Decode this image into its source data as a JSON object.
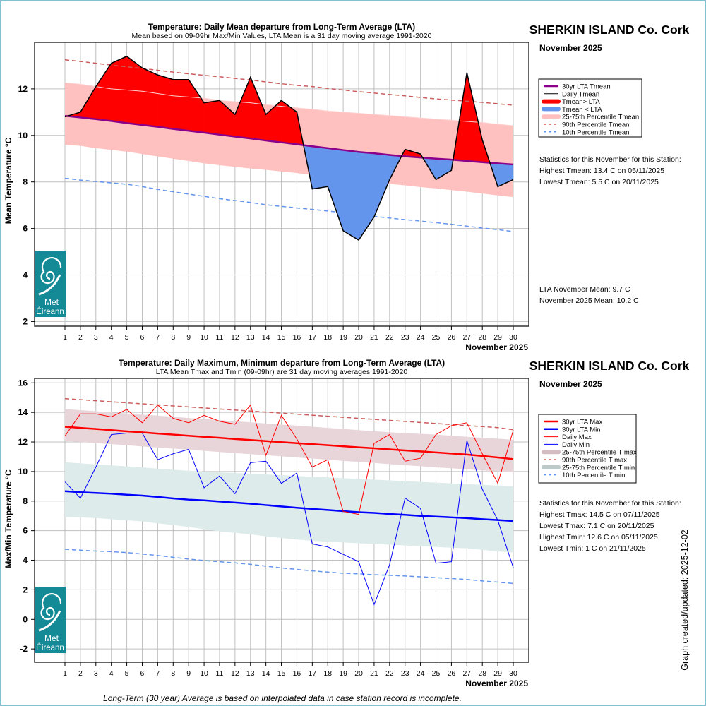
{
  "colors": {
    "above_fill": "#ff0000",
    "below_fill": "#6495ed",
    "lta_mean": "#8b008b",
    "band_mean": "#ffc0c0",
    "p90": "#cd5c5c",
    "p10": "#6495ed",
    "lta_max": "#ff0000",
    "lta_min": "#0000ff",
    "band_tmax": "#e8d5da",
    "band_tmin": "#deebeb",
    "logo_bg": "#148a96",
    "frame": "#7fc4cc"
  },
  "logo": {
    "line1": "Met",
    "line2": "Éireann"
  },
  "footer": "Long-Term (30 year) Average is based on interpolated data in case station record is incomplete.",
  "stamp": "Graph created/updated:  2025-12-02",
  "chart_data": [
    {
      "type": "area",
      "title": "Temperature: Daily Mean departure from Long-Term Average (LTA)",
      "subtitle": "Mean based on 09-09hr Max/Min Values, LTA Mean is a 31 day moving average 1991-2020",
      "station": "SHERKIN ISLAND Co. Cork",
      "month_label": "November 2025",
      "xlabel": "November 2025",
      "ylabel": "Mean Temperature °C",
      "ylim": [
        1.8,
        14.0
      ],
      "yticks": [
        2,
        4,
        6,
        8,
        10,
        12
      ],
      "x": [
        1,
        2,
        3,
        4,
        5,
        6,
        7,
        8,
        9,
        10,
        11,
        12,
        13,
        14,
        15,
        16,
        17,
        18,
        19,
        20,
        21,
        22,
        23,
        24,
        25,
        26,
        27,
        28,
        29,
        30
      ],
      "grid": true,
      "legend_position": "right",
      "series": [
        {
          "name": "Daily Tmean",
          "values": [
            10.8,
            11.0,
            12.1,
            13.1,
            13.4,
            12.9,
            12.6,
            12.4,
            12.4,
            11.4,
            11.5,
            10.9,
            12.5,
            10.9,
            11.5,
            11.0,
            7.7,
            7.8,
            5.9,
            5.5,
            6.5,
            8.1,
            9.4,
            9.2,
            8.1,
            8.5,
            12.7,
            9.8,
            7.8,
            8.1
          ]
        },
        {
          "name": "30yr LTA Tmean",
          "values": [
            10.84,
            10.77,
            10.7,
            10.62,
            10.53,
            10.45,
            10.37,
            10.28,
            10.2,
            10.12,
            10.03,
            9.95,
            9.87,
            9.78,
            9.7,
            9.62,
            9.53,
            9.45,
            9.37,
            9.29,
            9.23,
            9.16,
            9.1,
            9.05,
            9.0,
            8.96,
            8.9,
            8.85,
            8.8,
            8.75
          ]
        },
        {
          "name": "25th Percentile Tmean",
          "values": [
            9.6,
            9.55,
            9.45,
            9.38,
            9.3,
            9.2,
            9.1,
            9.0,
            8.9,
            8.8,
            8.72,
            8.65,
            8.58,
            8.52,
            8.45,
            8.38,
            8.3,
            8.22,
            8.15,
            8.08,
            8.0,
            7.92,
            7.85,
            7.78,
            7.72,
            7.65,
            7.58,
            7.5,
            7.42,
            7.35
          ]
        },
        {
          "name": "75th Percentile Tmean",
          "values": [
            12.26,
            12.2,
            12.1,
            12.0,
            11.95,
            11.9,
            11.8,
            11.7,
            11.65,
            11.6,
            11.5,
            11.45,
            11.4,
            11.32,
            11.25,
            11.18,
            11.12,
            11.05,
            11.0,
            10.95,
            10.9,
            10.85,
            10.8,
            10.75,
            10.7,
            10.65,
            10.6,
            10.55,
            10.48,
            10.42
          ]
        },
        {
          "name": "90th Percentile Tmean",
          "values": [
            13.25,
            13.18,
            13.1,
            13.02,
            12.95,
            12.88,
            12.8,
            12.72,
            12.65,
            12.58,
            12.52,
            12.45,
            12.38,
            12.3,
            12.22,
            12.15,
            12.1,
            12.02,
            11.95,
            11.88,
            11.82,
            11.76,
            11.7,
            11.63,
            11.57,
            11.52,
            11.47,
            11.42,
            11.36,
            11.3
          ]
        },
        {
          "name": "10th Percentile Tmean",
          "values": [
            8.16,
            8.08,
            8.02,
            7.96,
            7.9,
            7.8,
            7.68,
            7.58,
            7.48,
            7.38,
            7.28,
            7.2,
            7.12,
            7.02,
            6.95,
            6.88,
            6.82,
            6.75,
            6.68,
            6.6,
            6.52,
            6.45,
            6.38,
            6.32,
            6.25,
            6.18,
            6.1,
            6.02,
            5.95,
            5.87
          ]
        }
      ],
      "legend": [
        {
          "label": "30yr LTA Tmean",
          "style": "line",
          "color": "#8b008b"
        },
        {
          "label": "Daily Tmean",
          "style": "thin",
          "color": "#000000"
        },
        {
          "label": "Tmean> LTA",
          "style": "thick",
          "color": "#ff0000"
        },
        {
          "label": "Tmean < LTA",
          "style": "thick",
          "color": "#6495ed"
        },
        {
          "label": "25-75th Percentile Tmean",
          "style": "thick",
          "color": "#ffc0c0"
        },
        {
          "label": "90th Percentile Tmean",
          "style": "dash",
          "color": "#cd5c5c"
        },
        {
          "label": "10th Percentile Tmean",
          "style": "dash",
          "color": "#6495ed"
        }
      ],
      "stats_heading": "Statistics for this November for this Station:",
      "stats": [
        "Highest Tmean: 13.4 C on 05/11/2025",
        "Lowest Tmean: 5.5 C on 20/11/2025"
      ],
      "means": [
        "LTA November Mean: 9.7 C",
        "November 2025 Mean: 10.2 C"
      ]
    },
    {
      "type": "line",
      "title": "Temperature: Daily Maximum, Minimum departure from Long-Term Average (LTA)",
      "subtitle": "LTA Mean Tmax and Tmin (09-09hr) are 31 day moving averages 1991-2020",
      "station": "SHERKIN ISLAND Co. Cork",
      "month_label": "November 2025",
      "xlabel": "November 2025",
      "ylabel": "Max/Min Temperature °C",
      "ylim": [
        -2.9,
        16.3
      ],
      "yticks": [
        -2,
        0,
        2,
        4,
        6,
        8,
        10,
        12,
        14,
        16
      ],
      "x": [
        1,
        2,
        3,
        4,
        5,
        6,
        7,
        8,
        9,
        10,
        11,
        12,
        13,
        14,
        15,
        16,
        17,
        18,
        19,
        20,
        21,
        22,
        23,
        24,
        25,
        26,
        27,
        28,
        29,
        30
      ],
      "grid": true,
      "legend_position": "right",
      "series": [
        {
          "name": "Daily Max",
          "values": [
            12.4,
            13.9,
            13.9,
            13.7,
            14.2,
            13.3,
            14.5,
            13.6,
            13.3,
            13.8,
            13.4,
            13.2,
            14.5,
            11.1,
            13.8,
            12.2,
            10.3,
            10.8,
            7.3,
            7.1,
            11.9,
            12.5,
            10.7,
            10.9,
            12.5,
            13.1,
            13.3,
            11.2,
            9.2,
            12.8
          ]
        },
        {
          "name": "Daily Min",
          "values": [
            9.3,
            8.2,
            10.3,
            12.5,
            12.6,
            12.6,
            10.8,
            11.2,
            11.5,
            8.9,
            9.7,
            8.5,
            10.6,
            10.7,
            9.2,
            9.9,
            5.1,
            4.9,
            4.4,
            3.9,
            1.0,
            3.7,
            8.2,
            7.5,
            3.8,
            3.9,
            12.1,
            8.8,
            6.7,
            3.5
          ]
        },
        {
          "name": "30yr LTA Max",
          "values": [
            13.03,
            12.95,
            12.88,
            12.8,
            12.72,
            12.65,
            12.57,
            12.5,
            12.42,
            12.35,
            12.28,
            12.2,
            12.13,
            12.06,
            11.99,
            11.92,
            11.85,
            11.78,
            11.71,
            11.64,
            11.57,
            11.5,
            11.43,
            11.36,
            11.29,
            11.22,
            11.15,
            11.05,
            10.95,
            10.84
          ]
        },
        {
          "name": "30yr LTA Min",
          "values": [
            8.67,
            8.6,
            8.55,
            8.5,
            8.43,
            8.37,
            8.28,
            8.18,
            8.1,
            8.05,
            7.97,
            7.9,
            7.82,
            7.73,
            7.64,
            7.55,
            7.47,
            7.4,
            7.32,
            7.25,
            7.2,
            7.13,
            7.07,
            7.0,
            6.95,
            6.9,
            6.85,
            6.78,
            6.72,
            6.65
          ]
        },
        {
          "name": "25th Percentile T max",
          "values": [
            12.09,
            12.0,
            11.92,
            11.85,
            11.78,
            11.7,
            11.62,
            11.55,
            11.48,
            11.4,
            11.32,
            11.25,
            11.18,
            11.1,
            11.03,
            10.95,
            10.88,
            10.8,
            10.72,
            10.65,
            10.58,
            10.5,
            10.43,
            10.36,
            10.28,
            10.22,
            10.15,
            10.08,
            10.01,
            9.94
          ]
        },
        {
          "name": "75th Percentile T max",
          "values": [
            14.22,
            14.15,
            14.08,
            14.0,
            13.93,
            13.85,
            13.78,
            13.7,
            13.62,
            13.55,
            13.48,
            13.4,
            13.33,
            13.25,
            13.18,
            13.1,
            13.03,
            12.95,
            12.88,
            12.8,
            12.73,
            12.65,
            12.6,
            12.55,
            12.5,
            12.42,
            12.35,
            12.28,
            12.22,
            12.15
          ]
        },
        {
          "name": "90th Percentile T max",
          "values": [
            14.93,
            14.86,
            14.79,
            14.72,
            14.65,
            14.58,
            14.51,
            14.44,
            14.37,
            14.3,
            14.23,
            14.16,
            14.09,
            14.02,
            13.95,
            13.88,
            13.81,
            13.74,
            13.67,
            13.6,
            13.53,
            13.46,
            13.39,
            13.32,
            13.25,
            13.18,
            13.11,
            13.04,
            12.97,
            12.83
          ]
        },
        {
          "name": "25th Percentile T min",
          "values": [
            6.92,
            6.9,
            6.85,
            6.78,
            6.7,
            6.62,
            6.5,
            6.38,
            6.25,
            6.1,
            5.95,
            5.85,
            5.75,
            5.62,
            5.5,
            5.4,
            5.32,
            5.25,
            5.2,
            5.15,
            5.1,
            5.05,
            5.0,
            4.95,
            4.9,
            4.85,
            4.8,
            4.7,
            4.6,
            4.52
          ]
        },
        {
          "name": "75th Percentile T min",
          "values": [
            10.62,
            10.55,
            10.48,
            10.42,
            10.35,
            10.28,
            10.2,
            10.12,
            10.05,
            10.0,
            9.95,
            9.9,
            9.85,
            9.8,
            9.75,
            9.7,
            9.65,
            9.6,
            9.55,
            9.5,
            9.45,
            9.4,
            9.35,
            9.3,
            9.25,
            9.2,
            9.15,
            9.1,
            9.05,
            8.99
          ]
        },
        {
          "name": "10th Percentile T min",
          "values": [
            4.74,
            4.68,
            4.62,
            4.58,
            4.52,
            4.42,
            4.32,
            4.2,
            4.08,
            3.98,
            3.9,
            3.82,
            3.72,
            3.6,
            3.48,
            3.38,
            3.28,
            3.2,
            3.12,
            3.08,
            3.02,
            2.98,
            2.93,
            2.88,
            2.82,
            2.76,
            2.7,
            2.6,
            2.52,
            2.43
          ]
        }
      ],
      "legend": [
        {
          "label": "30yr LTA Max",
          "style": "line",
          "color": "#ff0000"
        },
        {
          "label": "30yr LTA Min",
          "style": "line",
          "color": "#0000ff"
        },
        {
          "label": "Daily Max",
          "style": "thin",
          "color": "#ff0000"
        },
        {
          "label": "Daily Min",
          "style": "thin",
          "color": "#0000ff"
        },
        {
          "label": "25-75th Percentile T max",
          "style": "thick",
          "color": "#d4bcc3"
        },
        {
          "label": "90th Percentile T max",
          "style": "dash",
          "color": "#cd5c5c"
        },
        {
          "label": "25-75th Percentile T min",
          "style": "thick",
          "color": "#bccaca"
        },
        {
          "label": "10th Percentile T min",
          "style": "dash",
          "color": "#6495ed"
        }
      ],
      "stats_heading": "Statistics for this November for this Station:",
      "stats": [
        "Highest Tmax: 14.5 C on 07/11/2025",
        "Lowest Tmax: 7.1 C on 20/11/2025",
        "Highest Tmin: 12.6 C on 05/11/2025",
        "Lowest Tmin: 1 C on 21/11/2025"
      ]
    }
  ]
}
